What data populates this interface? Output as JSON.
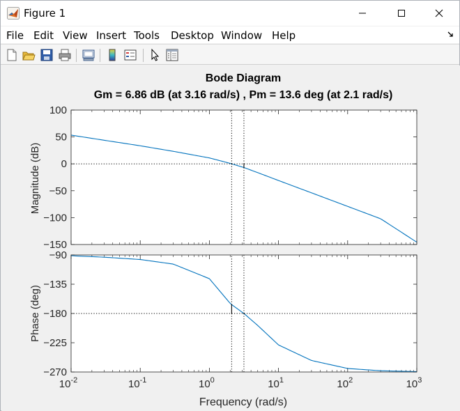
{
  "window": {
    "title": "Figure 1",
    "controls": [
      "minimize",
      "maximize",
      "close"
    ]
  },
  "menubar": {
    "items": [
      "File",
      "Edit",
      "View",
      "Insert",
      "Tools",
      "Desktop",
      "Window",
      "Help"
    ]
  },
  "toolbar": {
    "icons": [
      "new-figure-icon",
      "open-file-icon",
      "save-icon",
      "print-icon",
      "link-plot-icon",
      "colorbar-icon",
      "legend-icon",
      "edit-plot-icon",
      "property-inspector-icon"
    ]
  },
  "figure": {
    "title": "Bode Diagram",
    "subtitle": "Gm = 6.86 dB (at 3.16 rad/s) ,  Pm = 13.6 deg (at 2.1 rad/s)",
    "xlabel": "Frequency  (rad/s)",
    "mag_ylabel": "Magnitude (dB)",
    "phase_ylabel": "Phase (deg)"
  },
  "chart_data": [
    {
      "type": "line",
      "title": "Bode Diagram",
      "xlabel": "Frequency  (rad/s)",
      "ylabel": "Magnitude (dB)",
      "xscale": "log",
      "xlim": [
        0.01,
        1000
      ],
      "ylim": [
        -150,
        100
      ],
      "yticks": [
        "100",
        "50",
        "0",
        "-50",
        "-100",
        "-150"
      ],
      "xticks": [
        "10^-2",
        "10^-1",
        "10^0",
        "10^1",
        "10^2",
        "10^3"
      ],
      "grid": false,
      "series": [
        {
          "color": "#0072bd",
          "x": [
            0.01,
            0.03,
            0.1,
            0.3,
            1,
            2,
            2.1,
            3.16,
            5,
            10,
            30,
            100,
            300,
            1000
          ],
          "y": [
            53.4,
            43.9,
            33.6,
            23.3,
            11.0,
            0.9,
            0.0,
            -6.86,
            -16.3,
            -31.0,
            -53.9,
            -79.1,
            -102.1,
            -145.7
          ]
        },
        {
          "name": "unity gain line",
          "style": "dotted",
          "color": "#000000",
          "x": [
            0.01,
            1000
          ],
          "y": [
            0,
            0
          ]
        }
      ],
      "markers": {
        "gain_margin": {
          "frequency": 3.16,
          "value_db": 6.86
        },
        "phase_crossover_line": {
          "frequency": 3.16,
          "style": "dotted"
        },
        "gain_crossover_line": {
          "frequency": 2.1,
          "style": "dotted"
        }
      }
    },
    {
      "type": "line",
      "xlabel": "Frequency  (rad/s)",
      "ylabel": "Phase (deg)",
      "xscale": "log",
      "xlim": [
        0.01,
        1000
      ],
      "ylim": [
        -270,
        -90
      ],
      "yticks": [
        "-90",
        "-135",
        "-180",
        "-225",
        "-270"
      ],
      "xticks": [
        "10^-2",
        "10^-1",
        "10^0",
        "10^1",
        "10^2",
        "10^3"
      ],
      "grid": false,
      "series": [
        {
          "color": "#0072bd",
          "x": [
            0.01,
            0.03,
            0.1,
            0.3,
            1,
            2,
            2.1,
            3.16,
            5,
            10,
            30,
            100,
            300,
            1000
          ],
          "y": [
            -91.2,
            -93.4,
            -97.0,
            -104.0,
            -126.5,
            -164.5,
            -166.4,
            -180.0,
            -198.4,
            -228.4,
            -252.3,
            -264.6,
            -268.1,
            -269.4
          ]
        },
        {
          "name": "-180 line",
          "style": "dotted",
          "color": "#000000",
          "x": [
            0.01,
            1000
          ],
          "y": [
            -180,
            -180
          ]
        }
      ],
      "markers": {
        "phase_margin": {
          "frequency": 2.1,
          "value_deg": 13.6
        },
        "gain_crossover_line": {
          "frequency": 2.1,
          "style": "dotted"
        },
        "phase_crossover_line": {
          "frequency": 3.16,
          "style": "dotted"
        }
      }
    }
  ]
}
